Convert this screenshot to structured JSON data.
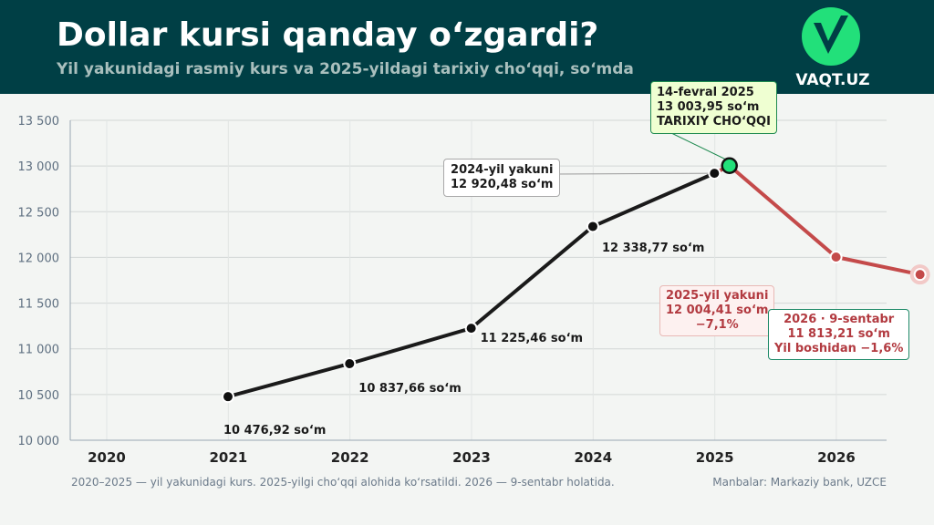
{
  "header": {
    "title": "Dollar kursi qanday o‘zgardi?",
    "subtitle": "Yil yakunidagi rasmiy kurs va 2025-yildagi tarixiy cho‘qqi, so‘mda",
    "logo_text": "VAQT.UZ"
  },
  "colors": {
    "header_bg": "#003f45",
    "line_main": "#1a1a1a",
    "line_decline": "#c44a4a",
    "peak_marker": "#22e07a",
    "logo": "#22e07a"
  },
  "chart_data": {
    "type": "line",
    "ylim": [
      10000,
      13500
    ],
    "y_ticks": [
      "10 000",
      "10 500",
      "11 000",
      "11 500",
      "12 000",
      "12 500",
      "13 000",
      "13 500"
    ],
    "x_ticks": [
      "2020",
      "2021",
      "2022",
      "2023",
      "2024",
      "2025",
      "2026"
    ],
    "grid": true,
    "series": [
      {
        "points": [
          {
            "x": "2020-12-31",
            "y": 10476.92
          },
          {
            "x": "2021-12-31",
            "y": 10837.66
          },
          {
            "x": "2022-12-31",
            "y": 11225.46
          },
          {
            "x": "2023-12-31",
            "y": 12338.77
          },
          {
            "x": "2024-12-31",
            "y": 12920.48
          }
        ]
      },
      {
        "points": [
          {
            "x": "2025-02-14",
            "y": 13003.95
          },
          {
            "x": "2025-12-31",
            "y": 12004.41
          },
          {
            "x": "2026-09-09",
            "y": 11813.21
          }
        ]
      }
    ],
    "labels": {
      "p2020": "10 476,92 so‘m",
      "p2021": "10 837,66 so‘m",
      "p2022": "11 225,46 so‘m",
      "p2023": "12 338,77 so‘m",
      "p2024_l1": "2024-yil yakuni",
      "p2024_l2": "12 920,48 so‘m",
      "peak_l1": "14-fevral 2025",
      "peak_l2": "13 003,95 so‘m",
      "peak_l3": "TARIXIY CHO‘QQI",
      "p2025_l1": "2025-yil yakuni",
      "p2025_l2": "12 004,41 so‘m",
      "p2025_l3": "−7,1%",
      "p2026_l1": "2026 · 9-sentabr",
      "p2026_l2": "11 813,21 so‘m",
      "p2026_l3": "Yil boshidan −1,6%"
    }
  },
  "footer": {
    "note": "2020–2025 — yil yakunidagi kurs. 2025-yilgi cho‘qqi alohida ko‘rsatildi. 2026 — 9-sentabr holatida.",
    "source": "Manbalar: Markaziy bank, UZCE"
  }
}
